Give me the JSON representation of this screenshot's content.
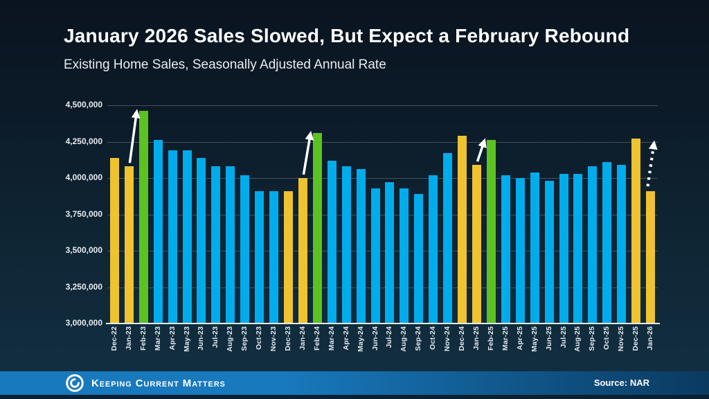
{
  "title": "January 2026 Sales Slowed, But Expect a February Rebound",
  "subtitle": "Existing Home Sales, Seasonally Adjusted Annual Rate",
  "footer": {
    "brand": "Keeping Current Matters",
    "source": "Source: NAR"
  },
  "colors": {
    "gold": "#EFC230",
    "green": "#5CC221",
    "blue": "#00ACEC",
    "footer_blue": "#1879BC",
    "footer_blue_dark": "#0A3A60",
    "grid": "#46525C",
    "axis": "#E9EDF0",
    "text": "#FFFFFF"
  },
  "chart_data": {
    "type": "bar",
    "title": "January 2026 Sales Slowed, But Expect a February Rebound",
    "subtitle": "Existing Home Sales, Seasonally Adjusted Annual Rate",
    "xlabel": "",
    "ylabel": "",
    "ylim": [
      3000000,
      4500000
    ],
    "ytick_step": 250000,
    "ytick_labels": [
      "4,500,000",
      "4,250,000",
      "4,000,000",
      "3,750,000",
      "3,500,000",
      "3,250,000",
      "3,000,000"
    ],
    "grid": true,
    "legend": false,
    "categories": [
      "Dec-22",
      "Jan-23",
      "Feb-23",
      "Mar-23",
      "Apr-23",
      "May-23",
      "Jun-23",
      "Jul-23",
      "Aug-23",
      "Sep-23",
      "Oct-23",
      "Nov-23",
      "Dec-23",
      "Jan-24",
      "Feb-24",
      "Mar-24",
      "Apr-24",
      "May-24",
      "Jun-24",
      "Jul-24",
      "Aug-24",
      "Sep-24",
      "Oct-24",
      "Nov-24",
      "Dec-24",
      "Jan-25",
      "Feb-25",
      "Mar-25",
      "Apr-25",
      "May-25",
      "Jun-25",
      "Jul-25",
      "Aug-25",
      "Sep-25",
      "Oct-25",
      "Nov-25",
      "Dec-25",
      "Jan-26"
    ],
    "values": [
      4140000,
      4080000,
      4460000,
      4260000,
      4190000,
      4190000,
      4140000,
      4080000,
      4080000,
      4020000,
      3910000,
      3910000,
      3910000,
      4000000,
      4310000,
      4120000,
      4080000,
      4060000,
      3930000,
      3970000,
      3930000,
      3890000,
      4020000,
      4170000,
      4290000,
      4090000,
      4260000,
      4020000,
      4000000,
      4040000,
      3980000,
      4030000,
      4030000,
      4080000,
      4110000,
      4090000,
      4270000,
      3910000
    ],
    "bar_colors": [
      "gold",
      "gold",
      "green",
      "blue",
      "blue",
      "blue",
      "blue",
      "blue",
      "blue",
      "blue",
      "blue",
      "blue",
      "gold",
      "gold",
      "green",
      "blue",
      "blue",
      "blue",
      "blue",
      "blue",
      "blue",
      "blue",
      "blue",
      "blue",
      "gold",
      "gold",
      "green",
      "blue",
      "blue",
      "blue",
      "blue",
      "blue",
      "blue",
      "blue",
      "blue",
      "blue",
      "gold",
      "gold"
    ],
    "annotations": [
      {
        "type": "arrow",
        "style": "solid",
        "from": "Jan-23",
        "to": "Feb-23"
      },
      {
        "type": "arrow",
        "style": "solid",
        "from": "Jan-24",
        "to": "Feb-24"
      },
      {
        "type": "arrow",
        "style": "solid",
        "from": "Jan-25",
        "to": "Feb-25"
      },
      {
        "type": "arrow",
        "style": "dotted",
        "from": "Jan-26",
        "to_value": 4240000
      }
    ]
  }
}
